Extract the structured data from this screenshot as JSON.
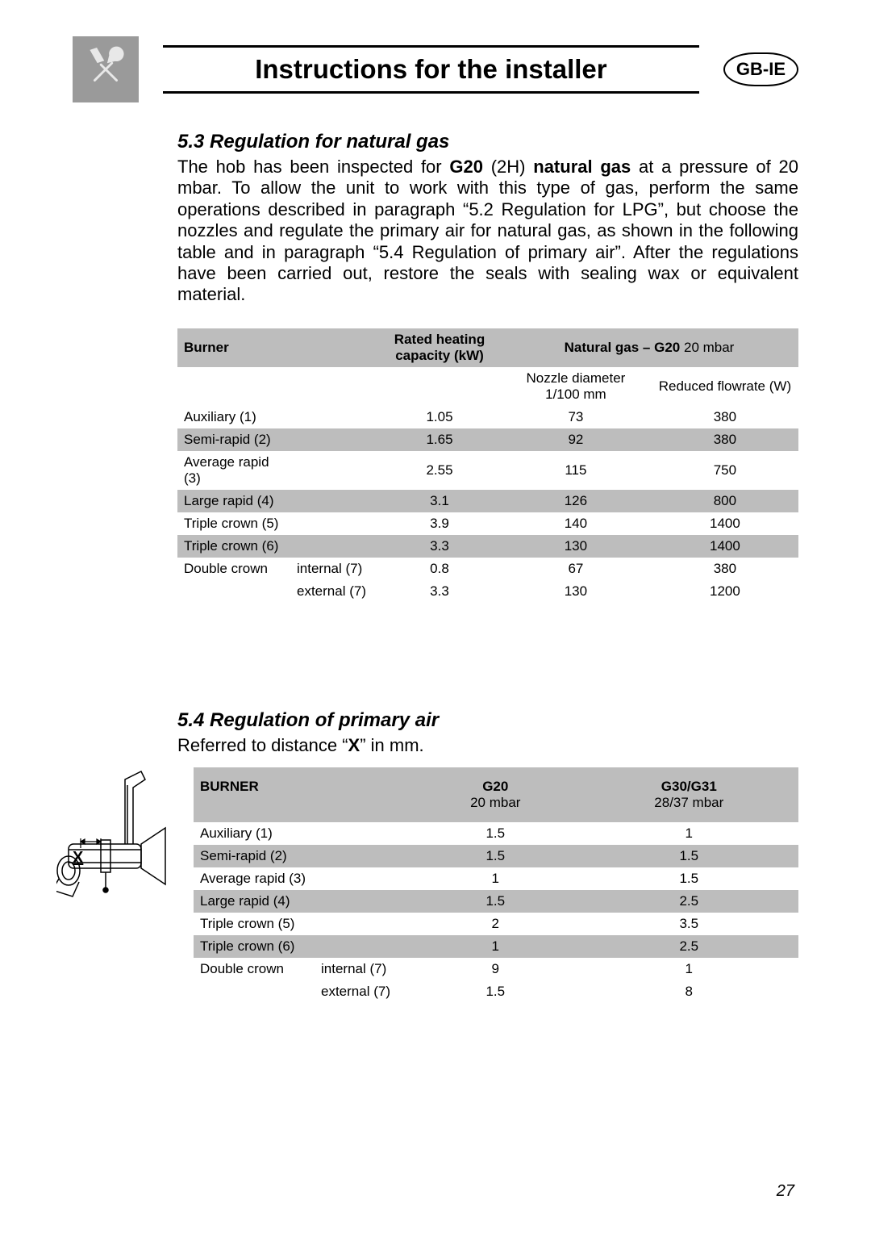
{
  "header": {
    "title": "Instructions for the installer",
    "locale_badge": "GB-IE",
    "tool_icon": "tools-icon"
  },
  "section53": {
    "heading": "5.3 Regulation for natural gas",
    "paragraph_parts": [
      "The hob has been inspected for ",
      "G20",
      " (2H) ",
      "natural gas",
      " at a pressure of 20 mbar. To allow the unit to work with this type of gas, perform the same operations described in paragraph “5.2 Regulation for LPG”, but choose the nozzles and regulate the primary air for natural gas, as shown in the following table and in paragraph “5.4 Regulation of primary air”. After the regulations have been carried out, restore the seals with sealing wax or equivalent material."
    ],
    "table": {
      "header_labels": {
        "burner": "Burner",
        "capacity": "Rated heating capacity (kW)",
        "gas_title": "Natural gas – G20",
        "gas_sub": "20 mbar",
        "sub_nozzle": "Nozzle diameter 1/100 mm",
        "sub_flow": "Reduced flowrate (W)"
      },
      "rows": [
        {
          "name": "Auxiliary (1)",
          "sub": "",
          "cap": "1.05",
          "noz": "73",
          "flow": "380",
          "shade": "a"
        },
        {
          "name": "Semi-rapid (2)",
          "sub": "",
          "cap": "1.65",
          "noz": "92",
          "flow": "380",
          "shade": "b"
        },
        {
          "name": "Average rapid (3)",
          "sub": "",
          "cap": "2.55",
          "noz": "115",
          "flow": "750",
          "shade": "a"
        },
        {
          "name": "Large rapid (4)",
          "sub": "",
          "cap": "3.1",
          "noz": "126",
          "flow": "800",
          "shade": "b"
        },
        {
          "name": "Triple crown (5)",
          "sub": "",
          "cap": "3.9",
          "noz": "140",
          "flow": "1400",
          "shade": "a"
        },
        {
          "name": "Triple crown (6)",
          "sub": "",
          "cap": "3.3",
          "noz": "130",
          "flow": "1400",
          "shade": "b"
        },
        {
          "name": "Double crown",
          "sub": "internal (7)",
          "cap": "0.8",
          "noz": "67",
          "flow": "380",
          "shade": "a"
        },
        {
          "name": "",
          "sub": "external (7)",
          "cap": "3.3",
          "noz": "130",
          "flow": "1200",
          "shade": "a"
        }
      ]
    }
  },
  "section54": {
    "heading": "5.4 Regulation of primary air",
    "note_parts": [
      "Referred to distance “",
      "X",
      "” in mm."
    ],
    "diagram_label": "X",
    "table": {
      "header_labels": {
        "burner": "BURNER",
        "g20": "G20",
        "g20_sub": "20 mbar",
        "g30": "G30/G31",
        "g30_sub": "28/37 mbar"
      },
      "rows": [
        {
          "name": "Auxiliary (1)",
          "sub": "",
          "g20": "1.5",
          "g30": "1",
          "shade": "a"
        },
        {
          "name": "Semi-rapid (2)",
          "sub": "",
          "g20": "1.5",
          "g30": "1.5",
          "shade": "b"
        },
        {
          "name": "Average rapid (3)",
          "sub": "",
          "g20": "1",
          "g30": "1.5",
          "shade": "a"
        },
        {
          "name": "Large rapid (4)",
          "sub": "",
          "g20": "1.5",
          "g30": "2.5",
          "shade": "b"
        },
        {
          "name": "Triple crown (5)",
          "sub": "",
          "g20": "2",
          "g30": "3.5",
          "shade": "a"
        },
        {
          "name": "Triple crown (6)",
          "sub": "",
          "g20": "1",
          "g30": "2.5",
          "shade": "b"
        },
        {
          "name": "Double crown",
          "sub": "internal (7)",
          "g20": "9",
          "g30": "1",
          "shade": "a"
        },
        {
          "name": "",
          "sub": "external (7)",
          "g20": "1.5",
          "g30": "8",
          "shade": "a"
        }
      ]
    }
  },
  "page_number": "27",
  "colors": {
    "icon_bg": "#9a9a9a",
    "table_shade": "#bdbdbd",
    "background": "#ffffff",
    "text": "#000000"
  },
  "fonts": {
    "title_size_pt": 25,
    "body_size_pt": 17,
    "table_size_pt": 13,
    "heading_size_pt": 18
  }
}
